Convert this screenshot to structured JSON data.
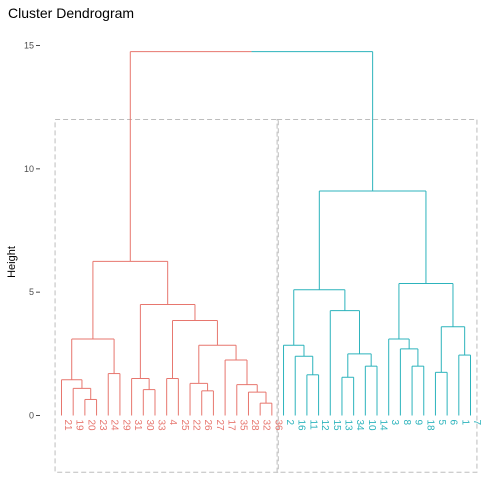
{
  "chart_data": {
    "type": "dendrogram",
    "title": "Cluster Dendrogram",
    "ylabel": "Height",
    "xlabel": "",
    "ylim": [
      0,
      15
    ],
    "y_ticks": [
      0,
      5,
      10,
      15
    ],
    "y_tick_labels": [
      "0",
      "5",
      "10",
      "15"
    ],
    "grid": false,
    "colors": {
      "cluster1": "#E7766E",
      "cluster2": "#2CB3BC",
      "box": "#BDBDBD",
      "axis": "#4d4d4d"
    },
    "leaves": [
      "21",
      "19",
      "20",
      "23",
      "24",
      "29",
      "31",
      "30",
      "33",
      "4",
      "25",
      "22",
      "26",
      "27",
      "17",
      "35",
      "28",
      "32",
      "36",
      "2",
      "16",
      "11",
      "12",
      "15",
      "13",
      "34",
      "10",
      "14",
      "3",
      "8",
      "9",
      "18",
      "5",
      "6",
      "1",
      "7"
    ],
    "leaf_cluster": [
      1,
      1,
      1,
      1,
      1,
      1,
      1,
      1,
      1,
      1,
      1,
      1,
      1,
      1,
      1,
      1,
      1,
      1,
      1,
      2,
      2,
      2,
      2,
      2,
      2,
      2,
      2,
      2,
      2,
      2,
      2,
      2,
      2,
      2,
      2,
      2
    ],
    "merges": [
      {
        "id": "a",
        "left": "20",
        "right": "23",
        "height": 0.65,
        "cluster": 1
      },
      {
        "id": "b",
        "left": "19",
        "right": "a",
        "height": 1.1,
        "cluster": 1
      },
      {
        "id": "c",
        "left": "21",
        "right": "b",
        "height": 1.45,
        "cluster": 1
      },
      {
        "id": "d",
        "left": "24",
        "right": "29",
        "height": 1.7,
        "cluster": 1
      },
      {
        "id": "e",
        "left": "c",
        "right": "d",
        "height": 3.1,
        "cluster": 1
      },
      {
        "id": "f",
        "left": "30",
        "right": "33",
        "height": 1.05,
        "cluster": 1
      },
      {
        "id": "g",
        "left": "31",
        "right": "f",
        "height": 1.5,
        "cluster": 1
      },
      {
        "id": "h",
        "left": "4",
        "right": "25",
        "height": 1.5,
        "cluster": 1
      },
      {
        "id": "i",
        "left": "26",
        "right": "27",
        "height": 1.0,
        "cluster": 1
      },
      {
        "id": "j",
        "left": "22",
        "right": "i",
        "height": 1.3,
        "cluster": 1
      },
      {
        "id": "k",
        "left": "32",
        "right": "36",
        "height": 0.5,
        "cluster": 1
      },
      {
        "id": "l",
        "left": "28",
        "right": "k",
        "height": 0.95,
        "cluster": 1
      },
      {
        "id": "m",
        "left": "35",
        "right": "l",
        "height": 1.25,
        "cluster": 1
      },
      {
        "id": "n",
        "left": "17",
        "right": "m",
        "height": 2.25,
        "cluster": 1
      },
      {
        "id": "o",
        "left": "j",
        "right": "n",
        "height": 2.85,
        "cluster": 1
      },
      {
        "id": "p",
        "left": "h",
        "right": "o",
        "height": 3.85,
        "cluster": 1
      },
      {
        "id": "q",
        "left": "g",
        "right": "p",
        "height": 4.5,
        "cluster": 1
      },
      {
        "id": "r",
        "left": "e",
        "right": "q",
        "height": 6.25,
        "cluster": 1
      },
      {
        "id": "s",
        "left": "11",
        "right": "12",
        "height": 1.65,
        "cluster": 2
      },
      {
        "id": "t",
        "left": "16",
        "right": "s",
        "height": 2.4,
        "cluster": 2
      },
      {
        "id": "u",
        "left": "2",
        "right": "t",
        "height": 2.85,
        "cluster": 2
      },
      {
        "id": "v",
        "left": "13",
        "right": "34",
        "height": 1.55,
        "cluster": 2
      },
      {
        "id": "w",
        "left": "10",
        "right": "14",
        "height": 2.0,
        "cluster": 2
      },
      {
        "id": "x",
        "left": "v",
        "right": "w",
        "height": 2.5,
        "cluster": 2
      },
      {
        "id": "y",
        "left": "15",
        "right": "x",
        "height": 4.25,
        "cluster": 2
      },
      {
        "id": "z",
        "left": "u",
        "right": "y",
        "height": 5.1,
        "cluster": 2
      },
      {
        "id": "aa",
        "left": "9",
        "right": "18",
        "height": 2.0,
        "cluster": 2
      },
      {
        "id": "ab",
        "left": "8",
        "right": "aa",
        "height": 2.7,
        "cluster": 2
      },
      {
        "id": "ac",
        "left": "3",
        "right": "ab",
        "height": 3.1,
        "cluster": 2
      },
      {
        "id": "ad",
        "left": "5",
        "right": "6",
        "height": 1.75,
        "cluster": 2
      },
      {
        "id": "ae",
        "left": "1",
        "right": "7",
        "height": 2.45,
        "cluster": 2
      },
      {
        "id": "af",
        "left": "ad",
        "right": "ae",
        "height": 3.6,
        "cluster": 2
      },
      {
        "id": "ag",
        "left": "ac",
        "right": "af",
        "height": 5.35,
        "cluster": 2
      },
      {
        "id": "ah",
        "left": "z",
        "right": "ag",
        "height": 9.1,
        "cluster": 2
      },
      {
        "id": "root",
        "left": "r",
        "right": "ah",
        "height": 14.75,
        "cluster": 0
      }
    ],
    "cluster_boxes": [
      {
        "cluster": 1,
        "first_leaf": "21",
        "last_leaf": "36",
        "ymin": -2.3,
        "ymax": 12.0
      },
      {
        "cluster": 2,
        "first_leaf": "2",
        "last_leaf": "7",
        "ymin": -2.3,
        "ymax": 12.0
      }
    ]
  }
}
